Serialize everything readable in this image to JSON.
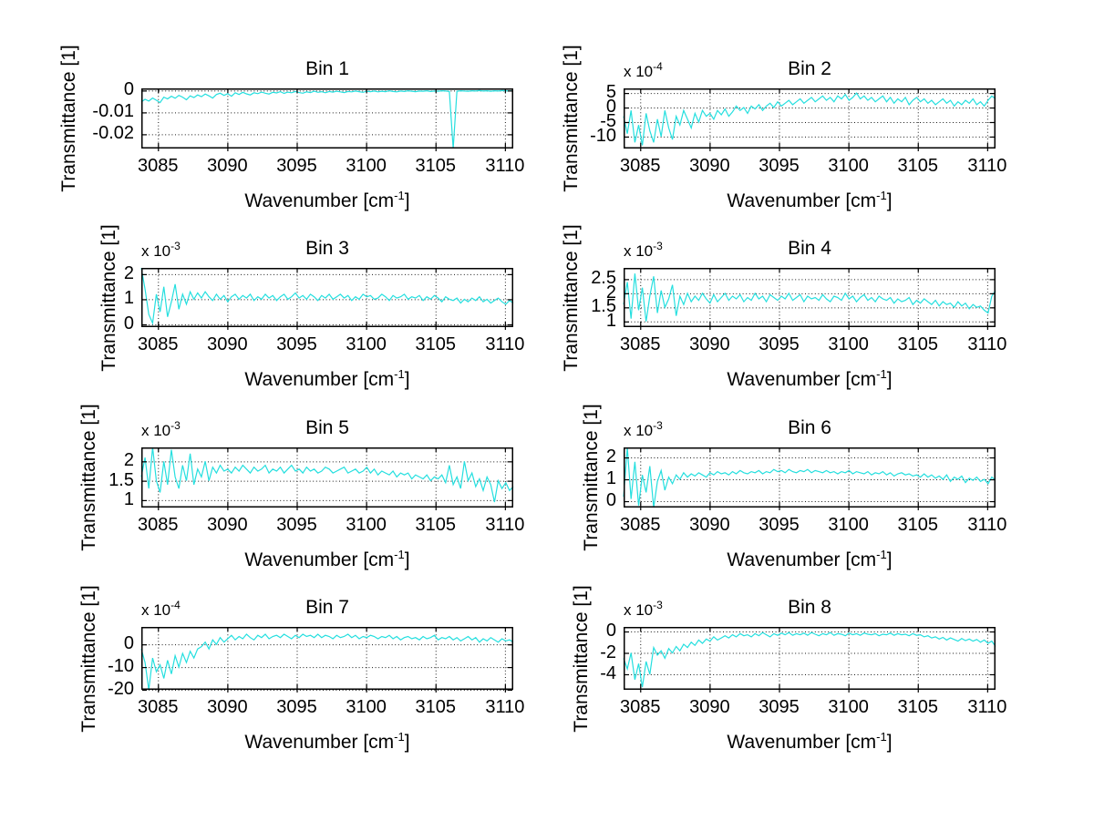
{
  "figure": {
    "colors": {
      "line": "#25dfdf",
      "grid": "#1a1a1a",
      "axis": "#000000",
      "text": "#000000",
      "background": "#ffffff"
    }
  },
  "chart_data": [
    {
      "type": "line",
      "title": "Bin 1",
      "ylabel": "Transmittance [1]",
      "xlabel_main": "Wavenumber [cm",
      "xlabel_sup": "-1",
      "xlabel_close": "]",
      "exponent_prefix": null,
      "exponent_sup": null,
      "xlim": [
        3083.8,
        3110.6
      ],
      "xticks": [
        3085,
        3090,
        3095,
        3100,
        3105,
        3110
      ],
      "xtick_labels": [
        "3085",
        "3090",
        "3095",
        "3100",
        "3105",
        "3110"
      ],
      "ylim": [
        -0.0265,
        0.001
      ],
      "yticks": [
        0,
        -0.01,
        -0.02
      ],
      "ytick_labels": [
        "0",
        "-0.01",
        "-0.02"
      ],
      "values_scale": "1",
      "values": [
        -0.0052,
        -0.004,
        -0.0048,
        -0.0034,
        -0.0044,
        -0.0055,
        -0.003,
        -0.0038,
        -0.0026,
        -0.0035,
        -0.0022,
        -0.003,
        -0.0042,
        -0.0024,
        -0.0032,
        -0.002,
        -0.0028,
        -0.0016,
        -0.0024,
        -0.0034,
        -0.0018,
        -0.0012,
        -0.0022,
        -0.0014,
        -0.0026,
        -0.001,
        -0.0018,
        -0.0008,
        -0.0015,
        -0.002,
        -0.001,
        -0.0014,
        -0.0007,
        -0.0012,
        -0.0016,
        -0.0008,
        -0.0011,
        -0.0005,
        -0.0013,
        -0.0007,
        -0.001,
        -0.0004,
        -0.0009,
        -0.0012,
        -0.0006,
        -0.0009,
        -0.0003,
        -0.0008,
        -0.0005,
        -0.001,
        -0.0004,
        -0.0007,
        -0.0003,
        -0.0006,
        -0.0009,
        -0.0004,
        -0.0006,
        -0.0002,
        -0.0005,
        -0.0008,
        -0.0003,
        -0.0005,
        -0.0002,
        -0.0006,
        -0.0003,
        -0.0005,
        -0.0001,
        -0.0004,
        -0.0006,
        -0.0002,
        -0.0004,
        -0.0001,
        -0.0003,
        -0.0005,
        -0.0002,
        -0.0003,
        -0.0001,
        -0.0004,
        -0.0002,
        -0.0003,
        -0.0001,
        -0.0002,
        -0.0004,
        -0.03,
        -0.0003,
        -0.0001,
        -0.0002,
        -0.0003,
        -0.0001,
        -0.0002,
        0.0,
        -0.0002,
        -0.0001,
        -0.0003,
        -0.0001,
        -0.0002,
        0.0,
        -0.0001,
        -0.0002,
        -0.0001
      ]
    },
    {
      "type": "line",
      "title": "Bin 2",
      "ylabel": "Transmittance [1]",
      "xlabel_main": "Wavenumber [cm",
      "xlabel_sup": "-1",
      "xlabel_close": "]",
      "exponent_prefix": "x 10",
      "exponent_sup": "-4",
      "xlim": [
        3083.8,
        3110.6
      ],
      "xticks": [
        3085,
        3090,
        3095,
        3100,
        3105,
        3110
      ],
      "xtick_labels": [
        "3085",
        "3090",
        "3095",
        "3100",
        "3105",
        "3110"
      ],
      "ylim": [
        -14.1,
        6.6
      ],
      "yticks": [
        5,
        0,
        -5,
        -10
      ],
      "ytick_labels": [
        "5",
        "0",
        "-5",
        "-10"
      ],
      "values_scale": "1e-4",
      "values": [
        -3,
        -9,
        -1,
        -12,
        -6,
        -13,
        -2,
        -8,
        -12,
        -4,
        -10,
        -1,
        -7,
        -11,
        -3,
        -6,
        -1,
        -4,
        -7,
        -2,
        -5,
        -1,
        -3,
        -2,
        -4,
        -1,
        -2.5,
        -0.5,
        -3,
        -1.5,
        0.5,
        -1,
        0,
        -2,
        0.5,
        -0.5,
        1,
        -1,
        0.5,
        1.5,
        0,
        2,
        0.5,
        1.5,
        2.5,
        1,
        2,
        3,
        1.5,
        2.5,
        3.5,
        2,
        3,
        4,
        2.5,
        3.5,
        2,
        4,
        3,
        4.5,
        2.5,
        3.5,
        5,
        3,
        4,
        2.5,
        3.5,
        2,
        3,
        4,
        2,
        3.5,
        1.5,
        3,
        2,
        3.5,
        1,
        2.5,
        3.5,
        2,
        3,
        1.5,
        2.5,
        1,
        2,
        3,
        1.5,
        2.5,
        0.5,
        2,
        1,
        2.5,
        1.5,
        3,
        1,
        2,
        0.5,
        2.5,
        4,
        3
      ]
    },
    {
      "type": "line",
      "title": "Bin 3",
      "ylabel": "Transmittance [1]",
      "xlabel_main": "Wavenumber [cm",
      "xlabel_sup": "-1",
      "xlabel_close": "]",
      "exponent_prefix": "x 10",
      "exponent_sup": "-3",
      "xlim": [
        3083.8,
        3110.6
      ],
      "xticks": [
        3085,
        3090,
        3095,
        3100,
        3105,
        3110
      ],
      "xtick_labels": [
        "3085",
        "3090",
        "3095",
        "3100",
        "3105",
        "3110"
      ],
      "ylim": [
        -0.11,
        2.25
      ],
      "yticks": [
        2,
        1,
        0
      ],
      "ytick_labels": [
        "2",
        "1",
        "0"
      ],
      "values_scale": "1e-3",
      "values": [
        2.3,
        1.4,
        0.4,
        0.05,
        1.2,
        0.5,
        1.5,
        0.3,
        0.9,
        1.6,
        0.6,
        1.2,
        0.8,
        1.3,
        1.0,
        1.25,
        1.05,
        1.3,
        1.1,
        0.95,
        1.2,
        1.0,
        1.15,
        0.9,
        1.1,
        1.2,
        1.0,
        1.15,
        1.05,
        1.2,
        0.95,
        1.1,
        1.0,
        1.2,
        1.05,
        1.15,
        0.95,
        1.1,
        1.2,
        1.0,
        1.1,
        1.25,
        1.05,
        1.15,
        1.0,
        1.2,
        1.1,
        0.95,
        1.15,
        1.05,
        1.2,
        1.0,
        1.1,
        1.2,
        1.05,
        1.15,
        0.95,
        1.1,
        1.0,
        1.2,
        1.1,
        1.15,
        1.0,
        1.05,
        1.2,
        1.1,
        0.95,
        1.15,
        1.05,
        1.1,
        1.2,
        1.0,
        1.1,
        1.05,
        1.15,
        0.95,
        1.1,
        1.0,
        1.15,
        1.05,
        0.9,
        1.1,
        1.0,
        0.95,
        1.05,
        0.85,
        1.0,
        0.9,
        1.05,
        0.95,
        1.1,
        0.9,
        1.0,
        0.85,
        0.95,
        1.05,
        0.9,
        0.8,
        0.95,
        0.85
      ]
    },
    {
      "type": "line",
      "title": "Bin 4",
      "ylabel": "Transmittance [1]",
      "xlabel_main": "Wavenumber [cm",
      "xlabel_sup": "-1",
      "xlabel_close": "]",
      "exponent_prefix": "x 10",
      "exponent_sup": "-3",
      "xlim": [
        3083.8,
        3110.6
      ],
      "xticks": [
        3085,
        3090,
        3095,
        3100,
        3105,
        3110
      ],
      "xtick_labels": [
        "3085",
        "3090",
        "3095",
        "3100",
        "3105",
        "3110"
      ],
      "ylim": [
        0.8,
        2.9
      ],
      "yticks": [
        2.5,
        2,
        1.5,
        1
      ],
      "ytick_labels": [
        "2.5",
        "2",
        "1.5",
        "1"
      ],
      "values_scale": "1e-3",
      "values": [
        1.6,
        2.4,
        1.1,
        2.7,
        1.4,
        2.2,
        1.0,
        1.9,
        2.6,
        1.3,
        2.1,
        1.5,
        1.8,
        2.3,
        1.2,
        1.9,
        1.6,
        2.0,
        1.7,
        1.9,
        1.75,
        2.0,
        1.8,
        1.65,
        1.95,
        1.7,
        1.85,
        2.0,
        1.75,
        1.9,
        1.8,
        1.95,
        1.7,
        1.85,
        1.75,
        2.0,
        1.8,
        1.9,
        1.7,
        1.95,
        1.85,
        1.75,
        1.9,
        1.8,
        2.0,
        1.75,
        1.85,
        1.95,
        1.7,
        1.9,
        1.8,
        1.85,
        1.75,
        1.95,
        1.8,
        1.7,
        1.9,
        1.85,
        1.75,
        2.0,
        1.8,
        1.9,
        1.7,
        1.85,
        1.95,
        1.75,
        1.85,
        1.7,
        1.9,
        1.8,
        1.75,
        1.85,
        1.65,
        1.8,
        1.7,
        1.75,
        1.85,
        1.6,
        1.75,
        1.65,
        1.8,
        1.7,
        1.6,
        1.75,
        1.55,
        1.7,
        1.6,
        1.65,
        1.5,
        1.7,
        1.55,
        1.65,
        1.45,
        1.6,
        1.5,
        1.55,
        1.4,
        1.3,
        1.9,
        2.1
      ]
    },
    {
      "type": "line",
      "title": "Bin 5",
      "ylabel": "Transmittance [1]",
      "xlabel_main": "Wavenumber [cm",
      "xlabel_sup": "-1",
      "xlabel_close": "]",
      "exponent_prefix": "x 10",
      "exponent_sup": "-3",
      "xlim": [
        3083.8,
        3110.6
      ],
      "xticks": [
        3085,
        3090,
        3095,
        3100,
        3105,
        3110
      ],
      "xtick_labels": [
        "3085",
        "3090",
        "3095",
        "3100",
        "3105",
        "3110"
      ],
      "ylim": [
        0.81,
        2.36
      ],
      "yticks": [
        2,
        1.5,
        1
      ],
      "ytick_labels": [
        "2",
        "1.5",
        "1"
      ],
      "values_scale": "1e-3",
      "values": [
        1.6,
        2.1,
        1.3,
        2.4,
        1.5,
        1.2,
        2.0,
        1.4,
        2.3,
        1.6,
        1.3,
        1.9,
        1.5,
        2.2,
        1.4,
        1.8,
        1.6,
        2.0,
        1.5,
        1.85,
        1.7,
        1.9,
        1.75,
        1.8,
        1.7,
        1.85,
        1.75,
        1.9,
        1.8,
        1.7,
        1.85,
        1.75,
        1.8,
        1.9,
        1.7,
        1.8,
        1.75,
        1.85,
        1.7,
        1.8,
        1.9,
        1.75,
        1.8,
        1.7,
        1.85,
        1.75,
        1.8,
        1.7,
        1.75,
        1.85,
        1.8,
        1.7,
        1.75,
        1.8,
        1.85,
        1.7,
        1.75,
        1.8,
        1.7,
        1.75,
        1.85,
        1.7,
        1.8,
        1.65,
        1.75,
        1.7,
        1.65,
        1.75,
        1.6,
        1.7,
        1.65,
        1.7,
        1.55,
        1.65,
        1.6,
        1.55,
        1.65,
        1.5,
        1.6,
        1.55,
        1.65,
        1.45,
        1.9,
        1.4,
        1.6,
        1.3,
        2.0,
        1.5,
        1.7,
        1.35,
        1.55,
        1.25,
        1.6,
        1.4,
        0.95,
        1.5,
        1.3,
        1.45,
        1.25,
        1.35
      ]
    },
    {
      "type": "line",
      "title": "Bin 6",
      "ylabel": "Transmittance [1]",
      "xlabel_main": "Wavenumber [cm",
      "xlabel_sup": "-1",
      "xlabel_close": "]",
      "exponent_prefix": "x 10",
      "exponent_sup": "-3",
      "xlim": [
        3083.8,
        3110.6
      ],
      "xticks": [
        3085,
        3090,
        3095,
        3100,
        3105,
        3110
      ],
      "xtick_labels": [
        "3085",
        "3090",
        "3095",
        "3100",
        "3105",
        "3110"
      ],
      "ylim": [
        -0.29,
        2.46
      ],
      "yticks": [
        2,
        1,
        0
      ],
      "ytick_labels": [
        "2",
        "1",
        "0"
      ],
      "values_scale": "1e-3",
      "values": [
        0.2,
        2.5,
        0.1,
        1.8,
        -0.2,
        1.2,
        0.4,
        1.6,
        -0.3,
        0.9,
        1.4,
        0.5,
        1.1,
        0.8,
        1.2,
        1.0,
        1.3,
        1.1,
        1.25,
        1.15,
        1.3,
        1.2,
        1.1,
        1.3,
        1.2,
        1.35,
        1.25,
        1.3,
        1.2,
        1.35,
        1.25,
        1.4,
        1.3,
        1.25,
        1.35,
        1.3,
        1.4,
        1.25,
        1.35,
        1.3,
        1.45,
        1.35,
        1.4,
        1.3,
        1.45,
        1.35,
        1.3,
        1.4,
        1.35,
        1.45,
        1.3,
        1.4,
        1.35,
        1.3,
        1.4,
        1.3,
        1.35,
        1.25,
        1.35,
        1.3,
        1.4,
        1.25,
        1.35,
        1.3,
        1.25,
        1.35,
        1.2,
        1.3,
        1.25,
        1.35,
        1.2,
        1.3,
        1.15,
        1.25,
        1.3,
        1.2,
        1.25,
        1.15,
        1.2,
        1.1,
        1.25,
        1.1,
        1.2,
        1.05,
        1.15,
        1.0,
        1.2,
        0.9,
        1.1,
        1.0,
        1.15,
        0.85,
        1.05,
        0.95,
        1.1,
        0.9,
        1.0,
        0.8,
        1.1,
        0.95
      ]
    },
    {
      "type": "line",
      "title": "Bin 7",
      "ylabel": "Transmittance [1]",
      "xlabel_main": "Wavenumber [cm",
      "xlabel_sup": "-1",
      "xlabel_close": "]",
      "exponent_prefix": "x 10",
      "exponent_sup": "-4",
      "xlim": [
        3083.8,
        3110.6
      ],
      "xticks": [
        3085,
        3090,
        3095,
        3100,
        3105,
        3110
      ],
      "xtick_labels": [
        "3085",
        "3090",
        "3095",
        "3100",
        "3105",
        "3110"
      ],
      "ylim": [
        -20,
        7.7
      ],
      "yticks": [
        0,
        -10,
        -20
      ],
      "ytick_labels": [
        "0",
        "-10",
        "-20"
      ],
      "values_scale": "1e-4",
      "values": [
        -2,
        -8,
        -20,
        -6,
        -12,
        -9,
        -15,
        -7,
        -13,
        -5,
        -10,
        -4,
        -8,
        -3,
        -6,
        -2,
        -1,
        1,
        -2,
        2,
        0,
        3,
        1,
        2.5,
        4,
        2,
        3.5,
        2.5,
        4.5,
        3,
        2,
        4,
        3,
        4.5,
        2.5,
        3.5,
        4,
        3,
        4.5,
        3.5,
        2.5,
        4,
        3,
        4.5,
        3.5,
        4,
        3,
        4.5,
        3,
        4,
        3.5,
        2.5,
        4,
        3,
        3.5,
        4.5,
        3,
        4,
        2.5,
        3.5,
        3,
        4,
        3.5,
        2.5,
        3.5,
        3,
        4,
        2.5,
        3.5,
        2,
        3,
        3.5,
        2.5,
        3,
        2,
        3.5,
        2.5,
        3,
        4,
        2,
        3,
        2.5,
        3.5,
        2,
        3,
        1.5,
        2.5,
        3.5,
        2,
        3,
        1,
        2.5,
        1.5,
        3,
        2,
        1,
        2.5,
        1.5,
        2,
        1
      ]
    },
    {
      "type": "line",
      "title": "Bin 8",
      "ylabel": "Transmittance [1]",
      "xlabel_main": "Wavenumber [cm",
      "xlabel_sup": "-1",
      "xlabel_close": "]",
      "exponent_prefix": "x 10",
      "exponent_sup": "-3",
      "xlim": [
        3083.8,
        3110.6
      ],
      "xticks": [
        3085,
        3090,
        3095,
        3100,
        3105,
        3110
      ],
      "xtick_labels": [
        "3085",
        "3090",
        "3095",
        "3100",
        "3105",
        "3110"
      ],
      "ylim": [
        -5.45,
        0.43
      ],
      "yticks": [
        0,
        -2,
        -4
      ],
      "ytick_labels": [
        "0",
        "-2",
        "-4"
      ],
      "values_scale": "1e-3",
      "values": [
        -2.5,
        -3.5,
        -2.0,
        -4.5,
        -3.0,
        -5.2,
        -2.8,
        -4.0,
        -1.5,
        -2.2,
        -1.8,
        -2.5,
        -1.6,
        -2.0,
        -1.4,
        -1.8,
        -1.2,
        -1.5,
        -1.0,
        -1.3,
        -0.8,
        -1.1,
        -0.7,
        -0.9,
        -0.5,
        -0.8,
        -0.6,
        -0.4,
        -0.6,
        -0.3,
        -0.5,
        -0.2,
        -0.4,
        -0.3,
        -0.5,
        -0.2,
        -0.4,
        -0.1,
        -0.3,
        -0.5,
        -0.2,
        -0.35,
        -0.15,
        -0.3,
        -0.1,
        -0.35,
        -0.2,
        -0.3,
        -0.15,
        -0.35,
        -0.1,
        -0.25,
        -0.4,
        -0.2,
        -0.3,
        -0.1,
        -0.35,
        -0.2,
        -0.25,
        -0.4,
        -0.15,
        -0.3,
        -0.2,
        -0.35,
        -0.15,
        -0.25,
        -0.3,
        -0.2,
        -0.4,
        -0.25,
        -0.3,
        -0.15,
        -0.35,
        -0.2,
        -0.3,
        -0.25,
        -0.4,
        -0.2,
        -0.35,
        -0.3,
        -0.5,
        -0.4,
        -0.6,
        -0.5,
        -0.7,
        -0.55,
        -0.8,
        -0.6,
        -0.75,
        -0.9,
        -0.65,
        -0.85,
        -0.7,
        -0.9,
        -0.75,
        -1.0,
        -0.8,
        -1.1,
        -0.9,
        -1.4
      ]
    }
  ]
}
